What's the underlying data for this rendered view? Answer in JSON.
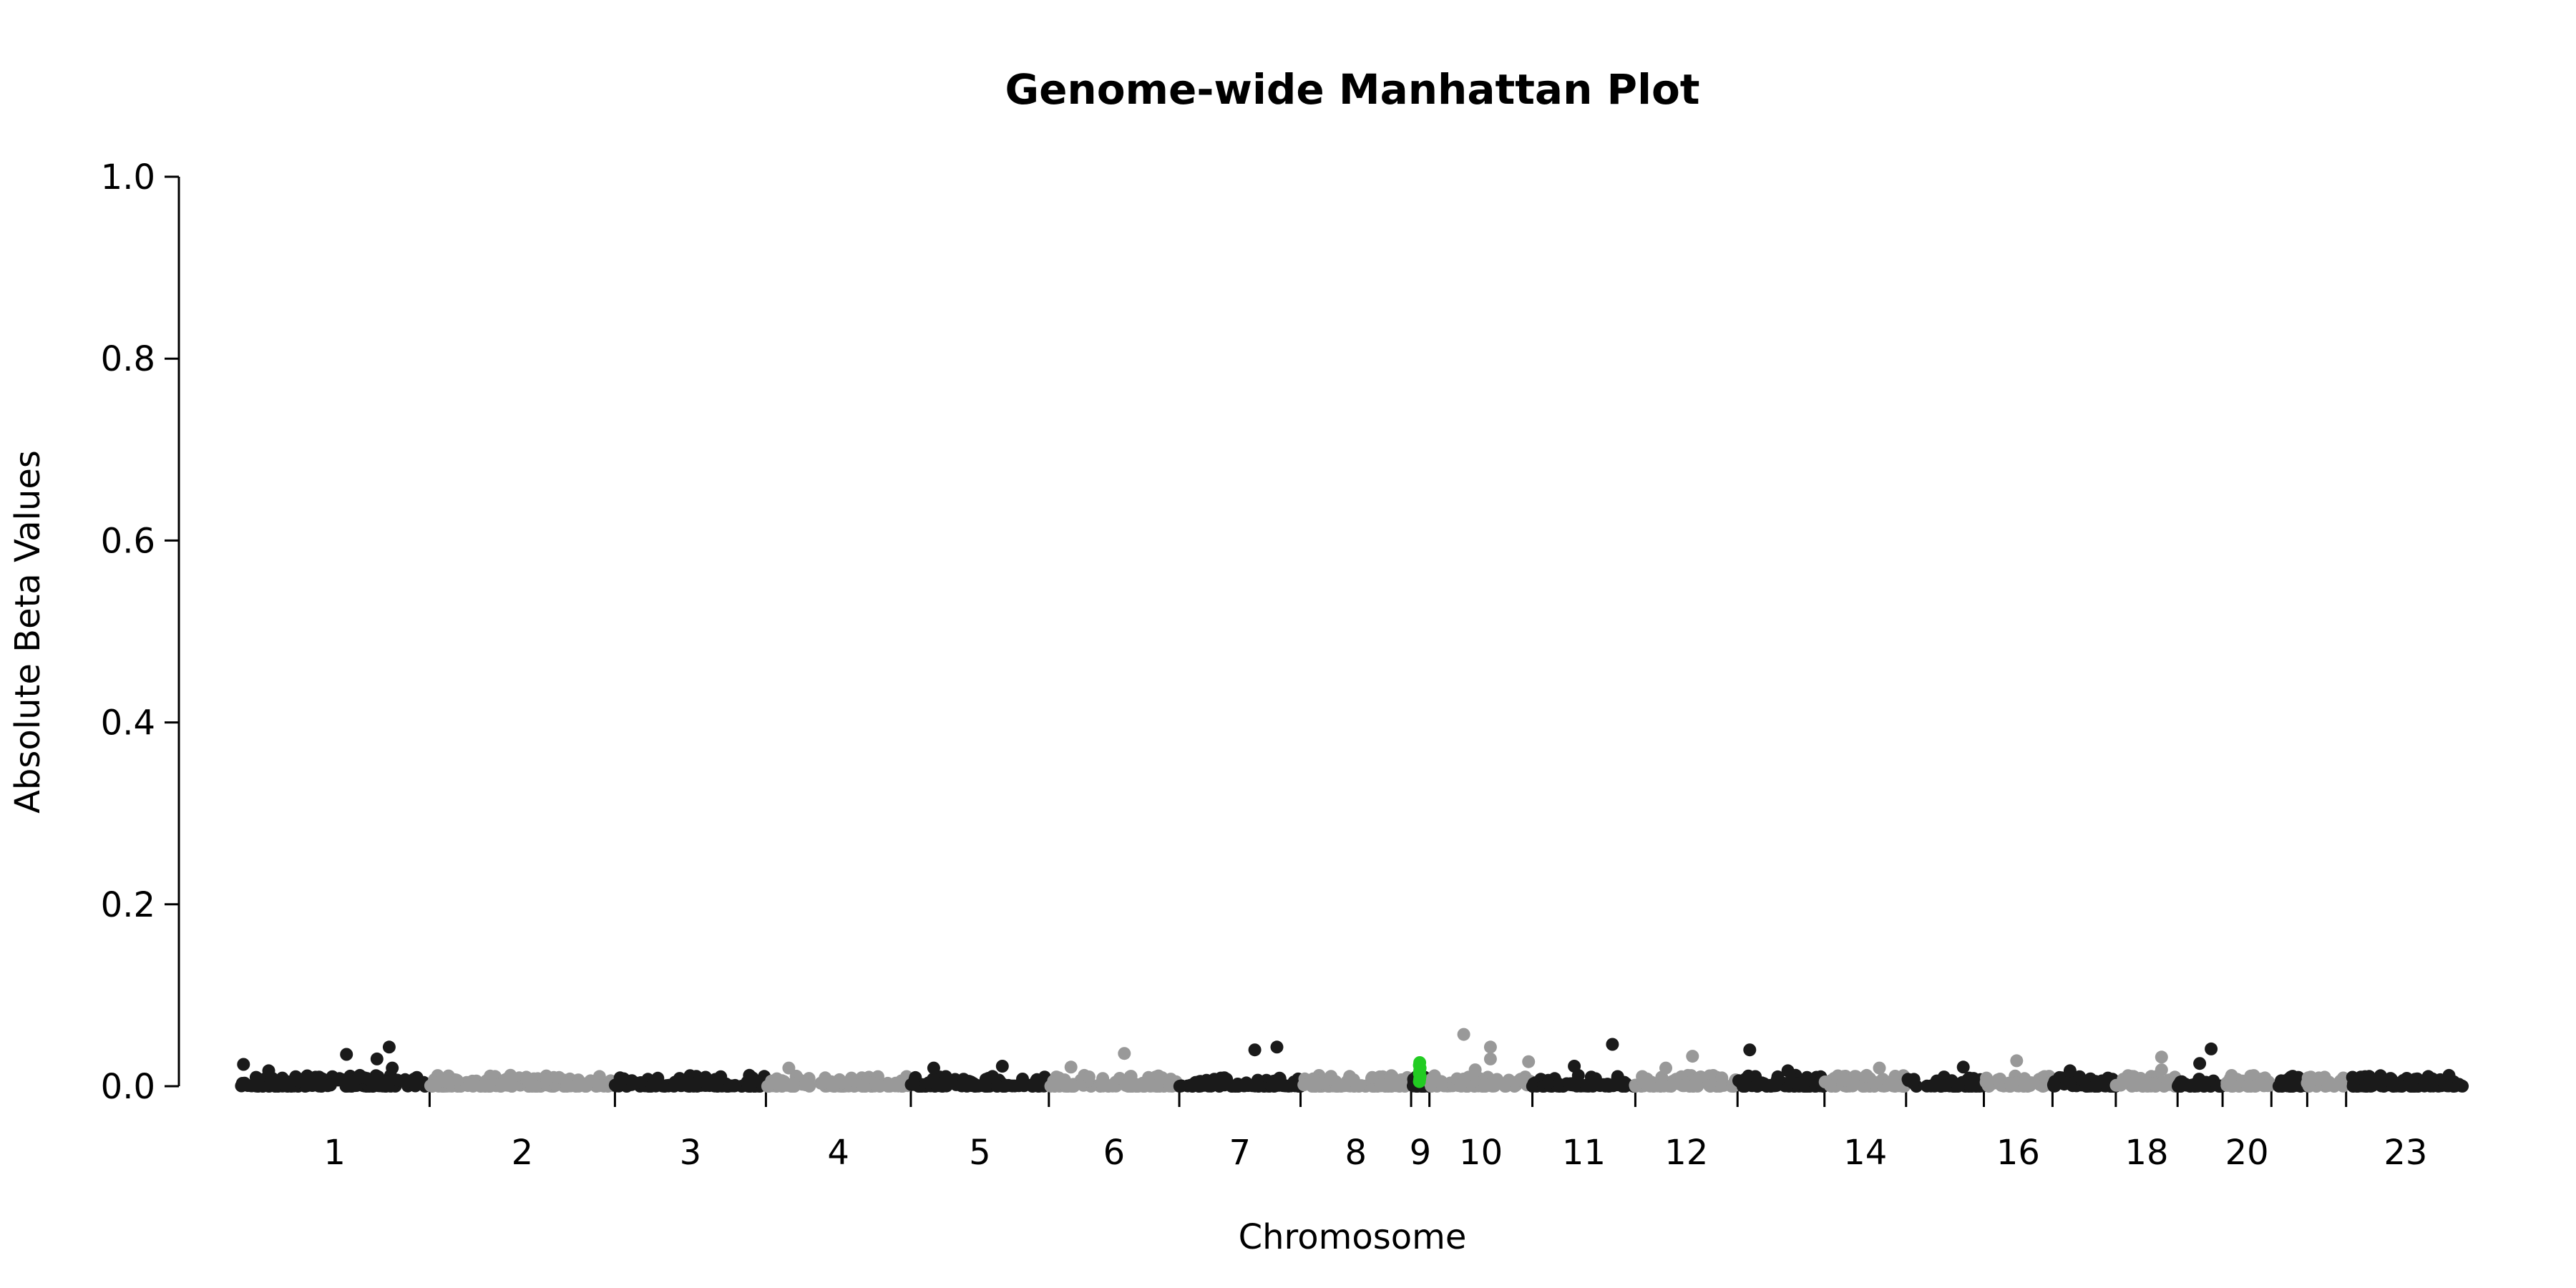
{
  "chart_data": {
    "type": "scatter",
    "title": "Genome-wide Manhattan Plot",
    "xlabel": "Chromosome",
    "ylabel": "Absolute Beta Values",
    "ylim": [
      0,
      1.0
    ],
    "y_ticks": [
      "0.0",
      "0.2",
      "0.4",
      "0.6",
      "0.8",
      "1.0"
    ],
    "grid": false,
    "colors": {
      "odd": "#1a1a1a",
      "even": "#999999",
      "highlight": "#22cc22"
    },
    "chromosomes": [
      {
        "id": "1",
        "label": "1",
        "start": 0,
        "end": 249,
        "color": "odd"
      },
      {
        "id": "2",
        "label": "2",
        "start": 249,
        "end": 492,
        "color": "even"
      },
      {
        "id": "3",
        "label": "3",
        "start": 492,
        "end": 690,
        "color": "odd"
      },
      {
        "id": "4",
        "label": "4",
        "start": 690,
        "end": 880,
        "color": "even"
      },
      {
        "id": "5",
        "label": "5",
        "start": 880,
        "end": 1061,
        "color": "odd"
      },
      {
        "id": "6",
        "label": "6",
        "start": 1061,
        "end": 1232,
        "color": "even"
      },
      {
        "id": "7",
        "label": "7",
        "start": 1232,
        "end": 1391,
        "color": "odd"
      },
      {
        "id": "8",
        "label": "8",
        "start": 1391,
        "end": 1536,
        "color": "even"
      },
      {
        "id": "9",
        "label": "9",
        "start": 1536,
        "end": 1560,
        "color": "odd"
      },
      {
        "id": "10",
        "label": "10",
        "start": 1560,
        "end": 1695,
        "color": "even"
      },
      {
        "id": "11",
        "label": "11",
        "start": 1695,
        "end": 1830,
        "color": "odd"
      },
      {
        "id": "12",
        "label": "12",
        "start": 1830,
        "end": 1964,
        "color": "even"
      },
      {
        "id": "13",
        "label": "",
        "start": 1964,
        "end": 2078,
        "color": "odd"
      },
      {
        "id": "14",
        "label": "14",
        "start": 2078,
        "end": 2185,
        "color": "even"
      },
      {
        "id": "15",
        "label": "",
        "start": 2185,
        "end": 2287,
        "color": "odd"
      },
      {
        "id": "16",
        "label": "16",
        "start": 2287,
        "end": 2377,
        "color": "even"
      },
      {
        "id": "17",
        "label": "",
        "start": 2377,
        "end": 2460,
        "color": "odd"
      },
      {
        "id": "18",
        "label": "18",
        "start": 2460,
        "end": 2541,
        "color": "even"
      },
      {
        "id": "19",
        "label": "",
        "start": 2541,
        "end": 2600,
        "color": "odd"
      },
      {
        "id": "20",
        "label": "20",
        "start": 2600,
        "end": 2664,
        "color": "even"
      },
      {
        "id": "21",
        "label": "",
        "start": 2664,
        "end": 2711,
        "color": "odd"
      },
      {
        "id": "22",
        "label": "",
        "start": 2711,
        "end": 2762,
        "color": "even"
      },
      {
        "id": "23",
        "label": "23",
        "start": 2762,
        "end": 2918,
        "color": "odd"
      }
    ],
    "highlight": {
      "chromosome": "9",
      "values": [
        0.005,
        0.008,
        0.011,
        0.014,
        0.017,
        0.02,
        0.023,
        0.026
      ]
    },
    "notable_points": [
      {
        "x": 5,
        "y": 0.024
      },
      {
        "x": 38,
        "y": 0.017
      },
      {
        "x": 140,
        "y": 0.035
      },
      {
        "x": 180,
        "y": 0.03
      },
      {
        "x": 196,
        "y": 0.043
      },
      {
        "x": 200,
        "y": 0.02
      },
      {
        "x": 355,
        "y": 0.012
      },
      {
        "x": 460,
        "y": 0.006
      },
      {
        "x": 720,
        "y": 0.02
      },
      {
        "x": 910,
        "y": 0.02
      },
      {
        "x": 1000,
        "y": 0.022
      },
      {
        "x": 1090,
        "y": 0.021
      },
      {
        "x": 1160,
        "y": 0.036
      },
      {
        "x": 1331,
        "y": 0.04
      },
      {
        "x": 1360,
        "y": 0.043
      },
      {
        "x": 1605,
        "y": 0.057
      },
      {
        "x": 1620,
        "y": 0.018
      },
      {
        "x": 1640,
        "y": 0.043
      },
      {
        "x": 1640,
        "y": 0.03
      },
      {
        "x": 1690,
        "y": 0.027
      },
      {
        "x": 1750,
        "y": 0.022
      },
      {
        "x": 1800,
        "y": 0.046
      },
      {
        "x": 1870,
        "y": 0.02
      },
      {
        "x": 1905,
        "y": 0.033
      },
      {
        "x": 1980,
        "y": 0.04
      },
      {
        "x": 2030,
        "y": 0.017
      },
      {
        "x": 2150,
        "y": 0.02
      },
      {
        "x": 2260,
        "y": 0.021
      },
      {
        "x": 2330,
        "y": 0.028
      },
      {
        "x": 2400,
        "y": 0.017
      },
      {
        "x": 2520,
        "y": 0.032
      },
      {
        "x": 2520,
        "y": 0.018
      },
      {
        "x": 2570,
        "y": 0.025
      },
      {
        "x": 2585,
        "y": 0.041
      }
    ]
  }
}
